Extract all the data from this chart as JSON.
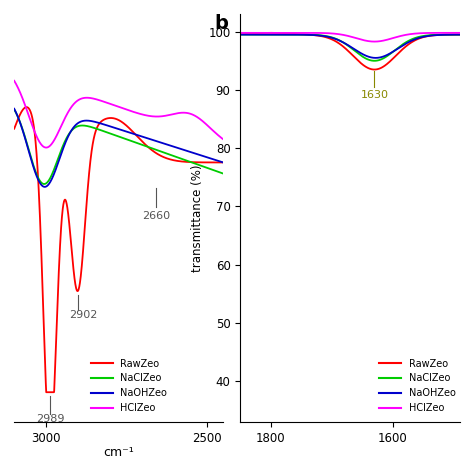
{
  "panel_a": {
    "xlim": [
      3100,
      2450
    ],
    "xlabel": "cm⁻¹",
    "xticks": [
      3000,
      2500
    ],
    "ylim": [
      -0.05,
      1.05
    ]
  },
  "panel_b": {
    "xlim": [
      1850,
      1490
    ],
    "ylim": [
      33,
      103
    ],
    "ylabel": "transmittance (%)",
    "yticks": [
      40,
      50,
      60,
      70,
      80,
      90,
      100
    ],
    "xticks": [
      1800,
      1600
    ],
    "panel_label": "b"
  },
  "colors": {
    "RawZeo": "#ff0000",
    "NaClZeo": "#00cc00",
    "NaOHZeo": "#0000cc",
    "HClZeo": "#ff00ff"
  },
  "legend_labels": [
    "RawZeo",
    "NaClZeo",
    "NaOHZeo",
    "HClZeo"
  ],
  "background": "#ffffff",
  "annotation_color": "#555555",
  "annotation_1630_color": "#888800"
}
